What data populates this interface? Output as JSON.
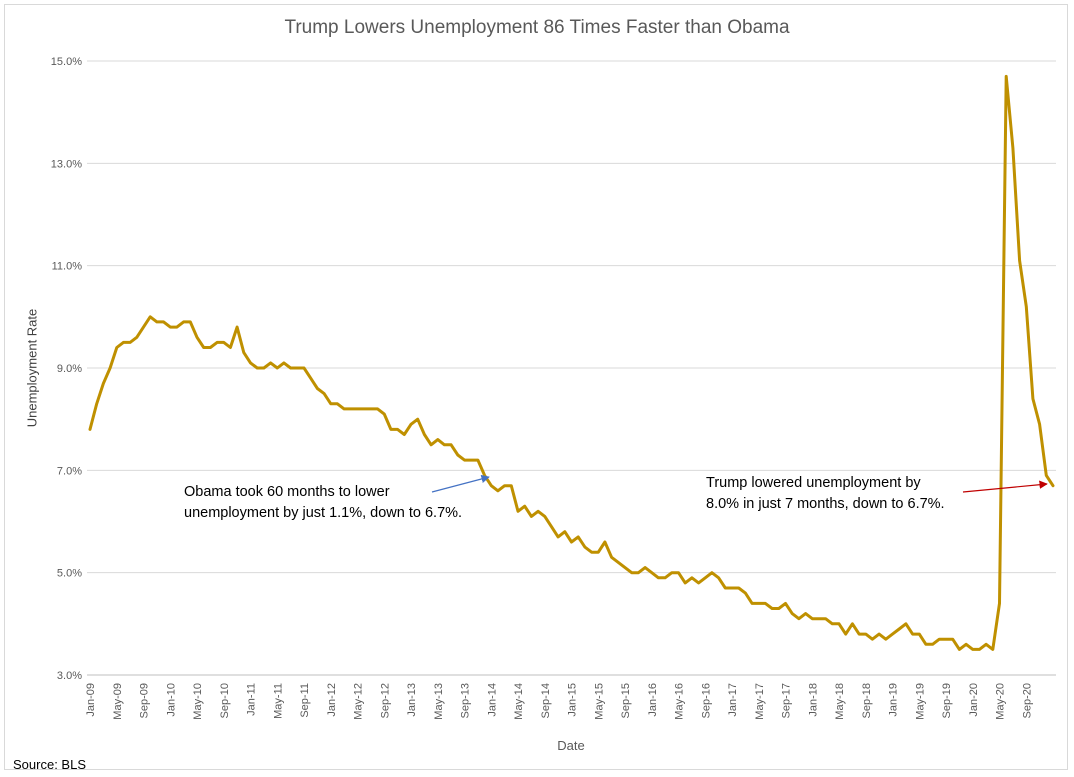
{
  "chart_data": {
    "type": "line",
    "title": "Trump Lowers Unemployment 86 Times Faster than Obama",
    "xlabel": "Date",
    "ylabel": "Unemployment Rate",
    "ylim": [
      3.0,
      15.0
    ],
    "yticks": [
      3.0,
      5.0,
      7.0,
      9.0,
      11.0,
      13.0,
      15.0
    ],
    "yticklabels": [
      "3.0%",
      "5.0%",
      "7.0%",
      "9.0%",
      "11.0%",
      "13.0%",
      "15.0%"
    ],
    "grid": "horizontal",
    "x_start": "Jan-09",
    "x_end": "Nov-20",
    "xticklabels": [
      "Jan-09",
      "May-09",
      "Sep-09",
      "Jan-10",
      "May-10",
      "Sep-10",
      "Jan-11",
      "May-11",
      "Sep-11",
      "Jan-12",
      "May-12",
      "Sep-12",
      "Jan-13",
      "May-13",
      "Sep-13",
      "Jan-14",
      "May-14",
      "Sep-14",
      "Jan-15",
      "May-15",
      "Sep-15",
      "Jan-16",
      "May-16",
      "Sep-16",
      "Jan-17",
      "May-17",
      "Sep-17",
      "Jan-18",
      "May-18",
      "Sep-18",
      "Jan-19",
      "May-19",
      "Sep-19",
      "Jan-20",
      "May-20",
      "Sep-20"
    ],
    "line_color": "#bf9000",
    "series": [
      {
        "values": [
          7.8,
          8.3,
          8.7,
          9.0,
          9.4,
          9.5,
          9.5,
          9.6,
          9.8,
          10.0,
          9.9,
          9.9,
          9.8,
          9.8,
          9.9,
          9.9,
          9.6,
          9.4,
          9.4,
          9.5,
          9.5,
          9.4,
          9.8,
          9.3,
          9.1,
          9.0,
          9.0,
          9.1,
          9.0,
          9.1,
          9.0,
          9.0,
          9.0,
          8.8,
          8.6,
          8.5,
          8.3,
          8.3,
          8.2,
          8.2,
          8.2,
          8.2,
          8.2,
          8.2,
          8.1,
          7.8,
          7.8,
          7.7,
          7.9,
          8.0,
          7.7,
          7.5,
          7.6,
          7.5,
          7.5,
          7.3,
          7.2,
          7.2,
          7.2,
          6.9,
          6.7,
          6.6,
          6.7,
          6.7,
          6.2,
          6.3,
          6.1,
          6.2,
          6.1,
          5.9,
          5.7,
          5.8,
          5.6,
          5.7,
          5.5,
          5.4,
          5.4,
          5.6,
          5.3,
          5.2,
          5.1,
          5.0,
          5.0,
          5.1,
          5.0,
          4.9,
          4.9,
          5.0,
          5.0,
          4.8,
          4.9,
          4.8,
          4.9,
          5.0,
          4.9,
          4.7,
          4.7,
          4.7,
          4.6,
          4.4,
          4.4,
          4.4,
          4.3,
          4.3,
          4.4,
          4.2,
          4.1,
          4.2,
          4.1,
          4.1,
          4.1,
          4.0,
          4.0,
          3.8,
          4.0,
          3.8,
          3.8,
          3.7,
          3.8,
          3.7,
          3.8,
          3.9,
          4.0,
          3.8,
          3.8,
          3.6,
          3.6,
          3.7,
          3.7,
          3.7,
          3.5,
          3.6,
          3.5,
          3.5,
          3.6,
          3.5,
          4.4,
          14.7,
          13.3,
          11.1,
          10.2,
          8.4,
          7.9,
          6.9,
          6.7
        ]
      }
    ]
  },
  "annotations": {
    "obama_line1": "Obama took 60 months to lower",
    "obama_line2": "unemployment by just 1.1%, down to 6.7%.",
    "trump_line1": "Trump lowered unemployment by",
    "trump_line2": "8.0% in just 7 months, down to 6.7%.",
    "obama_arrow_color": "#4472c4",
    "trump_arrow_color": "#c00000"
  },
  "source": "Source: BLS"
}
